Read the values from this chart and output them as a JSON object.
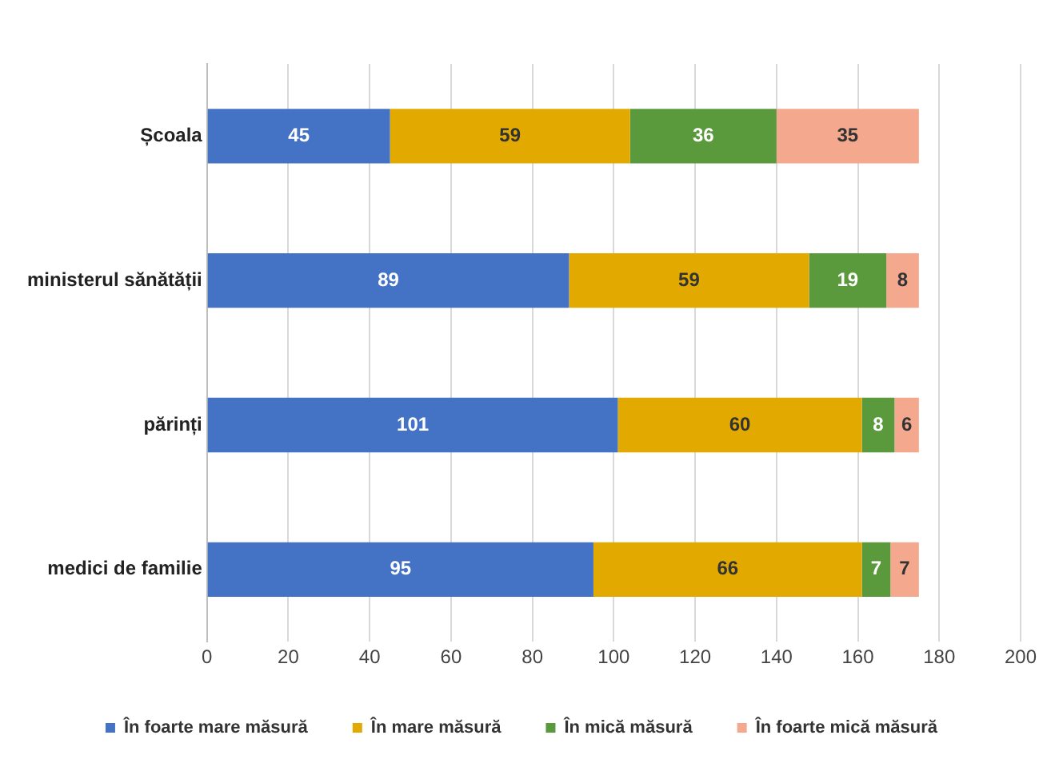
{
  "chart_data": {
    "type": "bar",
    "orientation": "horizontal",
    "stacked": true,
    "categories": [
      "Școala",
      "ministerul sănătății",
      "părinți",
      "medici de familie"
    ],
    "series": [
      {
        "name": "În foarte mare măsură",
        "color": "#4472c4",
        "values": [
          45,
          89,
          101,
          95
        ]
      },
      {
        "name": "În mare măsură",
        "color": "#e2aa00",
        "values": [
          59,
          59,
          60,
          66
        ]
      },
      {
        "name": "În mică măsură",
        "color": "#5b9a3c",
        "values": [
          36,
          19,
          8,
          7
        ]
      },
      {
        "name": "În foarte mică măsură",
        "color": "#f4a98f",
        "values": [
          35,
          8,
          6,
          7
        ]
      }
    ],
    "xlim": [
      0,
      200
    ],
    "xticks": [
      0,
      20,
      40,
      60,
      80,
      100,
      120,
      140,
      160,
      180,
      200
    ],
    "grid": "x",
    "legend": "bottom",
    "data_labels": true
  }
}
